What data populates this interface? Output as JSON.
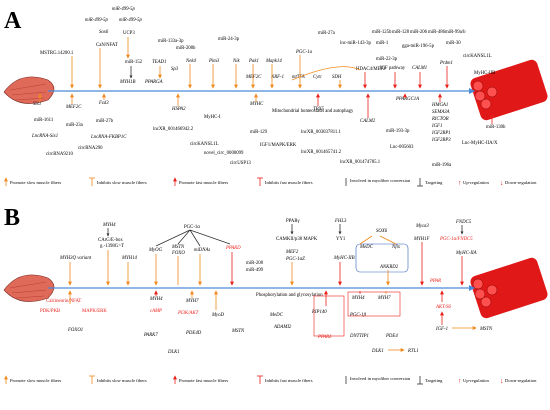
{
  "colors": {
    "slow_arrow": "#f08a1e",
    "fast_arrow": "#e8201a",
    "muscle_slow": "#e06a5a",
    "muscle_fast": "#e01818",
    "axis": "#4a8ad8",
    "targeting": "#333333",
    "upregulation": "#e8201a",
    "downregulation": "#e8201a",
    "highlight_box": "#3060c0"
  },
  "icons": {
    "slow_muscle": "slow-muscle-fiber-icon",
    "fast_muscle": "fast-muscle-bundle-icon",
    "up_arrow": "up-regulation-arrow-icon",
    "down_arrow": "down-regulation-arrow-icon"
  },
  "panel_a": {
    "letter": "A",
    "top_labels": [
      "miR-499-5p",
      "miR-499-5p",
      "miR-499-5p",
      "Sox6",
      "CaN/NFAT",
      "UCP3",
      "MSTRG.14200.1",
      "miR-152",
      "miR-133a-3p",
      "miR-208b",
      "miR-24-3p",
      "TEAD1",
      "MYH1B",
      "PPARGA",
      "Sp3",
      "Nek4",
      "Pim3",
      "Nik",
      "Pak1",
      "Mapk14",
      "MEF2C",
      "NRF-1",
      "mtTFA",
      "Cytc",
      "SDH",
      "miR-27a",
      "PGC-1a",
      "lnc-miR-143-3p",
      "miR-1",
      "miR-22-3p",
      "HDAC4/MEF2",
      "IGF pathway",
      "miR-125b",
      "miR-128",
      "miR-206",
      "miR-486",
      "miR-99a/b",
      "gga-miR-196-5p",
      "CALM1",
      "miR-30",
      "Prdm1",
      "circKANSL1L",
      "MyHC-IIB"
    ],
    "bottom_labels": [
      "Six1",
      "MEF2C",
      "Fzd3",
      "miR-1611",
      "miR-23a",
      "miR-27b",
      "LncRNA-Six1",
      "LncRNA-FKBP1C",
      "circRNA290",
      "circRNA9210",
      "lncXR_001466942.2",
      "HSPA2",
      "MyHC-I",
      "circKANSL1L",
      "novel_circ_0000099",
      "miR-129",
      "MYHC",
      "IGF1/MAPK/ERK",
      "circUSP13",
      "Mitochondrial homeostasis and autophagy",
      "TBX5",
      "lncXR_003037811.1",
      "lncXR_001465741.2",
      "CALM2",
      "PPARGC1A",
      "miR-193-3p",
      "Lnc-005603",
      "lncXR_001474785.1",
      "HMGA1",
      "SEMA3A",
      "RICTOR",
      "IGF1",
      "IGF2BP1",
      "IGF2BP3",
      "miR-196a",
      "miR-130b",
      "Lnc-MyHC-IIA/X"
    ],
    "legend": {
      "promote_slow": "Promote slow muscle fibers",
      "inhibit_slow": "Inhibits slow muscle fibers",
      "promote_fast": "Promote fast muscle fibers",
      "inhibit_fast": "Inhibits fast muscle fibers",
      "involved": "Involved in myofiber conversion",
      "targeting": "Targeting",
      "up": "Up-regulation",
      "down": "Down-regulation"
    }
  },
  "panel_b": {
    "letter": "B",
    "top_labels": [
      "MYH4",
      "CArG/E-box",
      "g.-1398G>T",
      "MYH3Q variant",
      "MYH14",
      "PGC-1α",
      "MyOG",
      "MSTN",
      "FOXO",
      "miDNAs",
      "PPARD",
      "PPARγ",
      "CAMKII/p38 MAPK",
      "MEF2",
      "PGC-1αZ",
      "FHL3",
      "YY1",
      "MyHC-IIB",
      "SOX6",
      "MeDC",
      "Nfix",
      "Myoz3",
      "MYH1F",
      "FNDC5",
      "PGC-1α/FNDC5",
      "MyHC-IIA",
      "miR-208",
      "miR-499",
      "ANKRD2"
    ],
    "bottom_labels": [
      "Calcineurin/NFAT",
      "PDK/PKB",
      "MAPK/ERK",
      "FOXO1",
      "MYH4",
      "cAMP",
      "MYH7",
      "PI3K/AKT",
      "MyoD",
      "PARK7",
      "PDE4D",
      "DLK1",
      "MSTN",
      "MeDC",
      "Phosphorylation and glycosylation",
      "ADAMI2",
      "RIP140",
      "PGC-1β",
      "PPARδ",
      "MYH4",
      "MYH7",
      "DNTTIP1",
      "PDE4",
      "DLK1",
      "RTL1",
      "AKT/S6",
      "PPAR",
      "IGF-1",
      "MSTN"
    ],
    "legend": {
      "promote_slow": "Promote slow muscle fibers",
      "inhibit_slow": "Inhibits slow muscle fibers",
      "promote_fast": "Promote fast muscle fibers",
      "inhibit_fast": "Inhibits fast muscle fibers",
      "involved": "Involved in myofiber conversion",
      "targeting": "Targeting",
      "up": "Up-regulation",
      "down": "Down-regulation"
    }
  }
}
